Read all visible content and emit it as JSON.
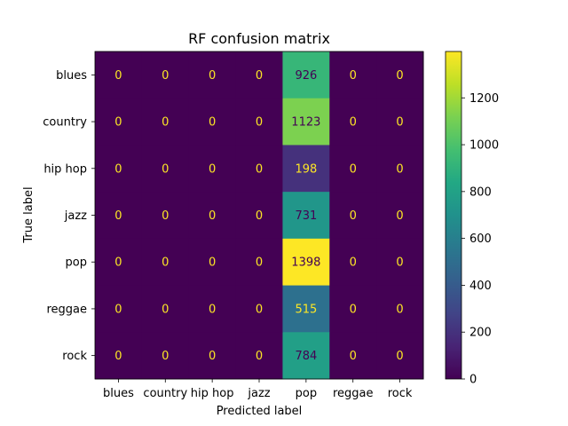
{
  "chart_data": {
    "type": "heatmap",
    "title": "RF confusion matrix",
    "xlabel": "Predicted label",
    "ylabel": "True label",
    "x_categories": [
      "blues",
      "country",
      "hip hop",
      "jazz",
      "pop",
      "reggae",
      "rock"
    ],
    "y_categories": [
      "blues",
      "country",
      "hip hop",
      "jazz",
      "pop",
      "reggae",
      "rock"
    ],
    "values": [
      [
        0,
        0,
        0,
        0,
        926,
        0,
        0
      ],
      [
        0,
        0,
        0,
        0,
        1123,
        0,
        0
      ],
      [
        0,
        0,
        0,
        0,
        198,
        0,
        0
      ],
      [
        0,
        0,
        0,
        0,
        731,
        0,
        0
      ],
      [
        0,
        0,
        0,
        0,
        1398,
        0,
        0
      ],
      [
        0,
        0,
        0,
        0,
        515,
        0,
        0
      ],
      [
        0,
        0,
        0,
        0,
        784,
        0,
        0
      ]
    ],
    "colormap": "viridis",
    "colorbar": {
      "min": 0,
      "max": 1398,
      "ticks": [
        0,
        200,
        400,
        600,
        800,
        1000,
        1200
      ]
    },
    "grid": false
  }
}
